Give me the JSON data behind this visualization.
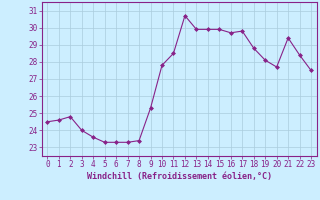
{
  "x": [
    0,
    1,
    2,
    3,
    4,
    5,
    6,
    7,
    8,
    9,
    10,
    11,
    12,
    13,
    14,
    15,
    16,
    17,
    18,
    19,
    20,
    21,
    22,
    23
  ],
  "y": [
    24.5,
    24.6,
    24.8,
    24.0,
    23.6,
    23.3,
    23.3,
    23.3,
    23.4,
    25.3,
    27.8,
    28.5,
    30.7,
    29.9,
    29.9,
    29.9,
    29.7,
    29.8,
    28.8,
    28.1,
    27.7,
    29.4,
    28.4,
    27.5
  ],
  "line_color": "#882288",
  "marker": "D",
  "marker_size": 2.0,
  "bg_color": "#cceeff",
  "grid_color": "#aaccdd",
  "xlabel": "Windchill (Refroidissement éolien,°C)",
  "xlabel_color": "#882288",
  "tick_color": "#882288",
  "spine_color": "#882288",
  "ylim": [
    22.5,
    31.5
  ],
  "xlim": [
    -0.5,
    23.5
  ],
  "yticks": [
    23,
    24,
    25,
    26,
    27,
    28,
    29,
    30,
    31
  ],
  "xticks": [
    0,
    1,
    2,
    3,
    4,
    5,
    6,
    7,
    8,
    9,
    10,
    11,
    12,
    13,
    14,
    15,
    16,
    17,
    18,
    19,
    20,
    21,
    22,
    23
  ],
  "tick_fontsize": 5.5,
  "xlabel_fontsize": 6.0,
  "linewidth": 0.8
}
